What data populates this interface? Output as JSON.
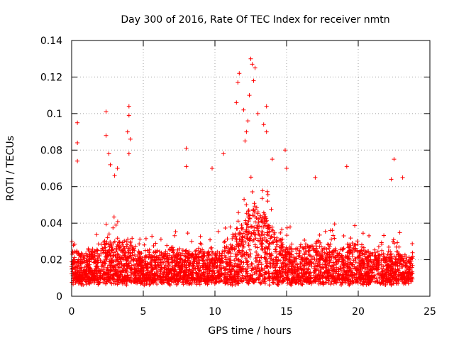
{
  "chart_data": {
    "type": "scatter",
    "title": "Day 300 of 2016, Rate Of TEC Index for receiver nmtn",
    "xlabel": "GPS time / hours",
    "ylabel": "ROTI / TECUs",
    "xlim": [
      0,
      25
    ],
    "ylim": [
      0,
      0.14
    ],
    "x_ticks": [
      0,
      5,
      10,
      15,
      20,
      25
    ],
    "x_tick_labels": [
      "0",
      "5",
      "10",
      "15",
      "20",
      "25"
    ],
    "y_ticks": [
      0,
      0.02,
      0.04,
      0.06,
      0.08,
      0.1,
      0.12,
      0.14
    ],
    "y_tick_labels": [
      "0",
      "0.02",
      "0.04",
      "0.06",
      "0.08",
      "0.1",
      "0.12",
      "0.14"
    ],
    "grid": true,
    "marker": "+",
    "color": "#ff0000",
    "series": [
      {
        "name": "ROTI",
        "description": "Dense cloud of ROTI samples across the full day; background values mostly 0.005–0.04 TECU/min with enhanced activity between ~10.5 and ~15 h.",
        "x_range": [
          0.0,
          23.8
        ],
        "y_baseline_range": [
          0.005,
          0.04
        ],
        "highlights": [
          {
            "x": 0.4,
            "y": 0.095
          },
          {
            "x": 0.4,
            "y": 0.084
          },
          {
            "x": 0.4,
            "y": 0.074
          },
          {
            "x": 2.4,
            "y": 0.101
          },
          {
            "x": 2.4,
            "y": 0.088
          },
          {
            "x": 2.6,
            "y": 0.078
          },
          {
            "x": 2.7,
            "y": 0.072
          },
          {
            "x": 3.0,
            "y": 0.066
          },
          {
            "x": 3.2,
            "y": 0.07
          },
          {
            "x": 4.0,
            "y": 0.104
          },
          {
            "x": 4.0,
            "y": 0.099
          },
          {
            "x": 3.9,
            "y": 0.09
          },
          {
            "x": 4.1,
            "y": 0.086
          },
          {
            "x": 4.0,
            "y": 0.078
          },
          {
            "x": 8.0,
            "y": 0.081
          },
          {
            "x": 8.0,
            "y": 0.071
          },
          {
            "x": 9.8,
            "y": 0.07
          },
          {
            "x": 10.6,
            "y": 0.078
          },
          {
            "x": 11.5,
            "y": 0.106
          },
          {
            "x": 11.6,
            "y": 0.117
          },
          {
            "x": 11.7,
            "y": 0.122
          },
          {
            "x": 12.0,
            "y": 0.102
          },
          {
            "x": 12.1,
            "y": 0.085
          },
          {
            "x": 12.3,
            "y": 0.096
          },
          {
            "x": 12.5,
            "y": 0.13
          },
          {
            "x": 12.6,
            "y": 0.127
          },
          {
            "x": 12.7,
            "y": 0.118
          },
          {
            "x": 12.8,
            "y": 0.125
          },
          {
            "x": 12.4,
            "y": 0.11
          },
          {
            "x": 12.2,
            "y": 0.09
          },
          {
            "x": 13.0,
            "y": 0.1
          },
          {
            "x": 13.4,
            "y": 0.094
          },
          {
            "x": 13.6,
            "y": 0.104
          },
          {
            "x": 13.6,
            "y": 0.09
          },
          {
            "x": 14.0,
            "y": 0.075
          },
          {
            "x": 14.9,
            "y": 0.08
          },
          {
            "x": 15.0,
            "y": 0.07
          },
          {
            "x": 17.0,
            "y": 0.065
          },
          {
            "x": 19.2,
            "y": 0.071
          },
          {
            "x": 22.3,
            "y": 0.064
          },
          {
            "x": 22.5,
            "y": 0.075
          },
          {
            "x": 23.1,
            "y": 0.065
          }
        ]
      }
    ]
  }
}
